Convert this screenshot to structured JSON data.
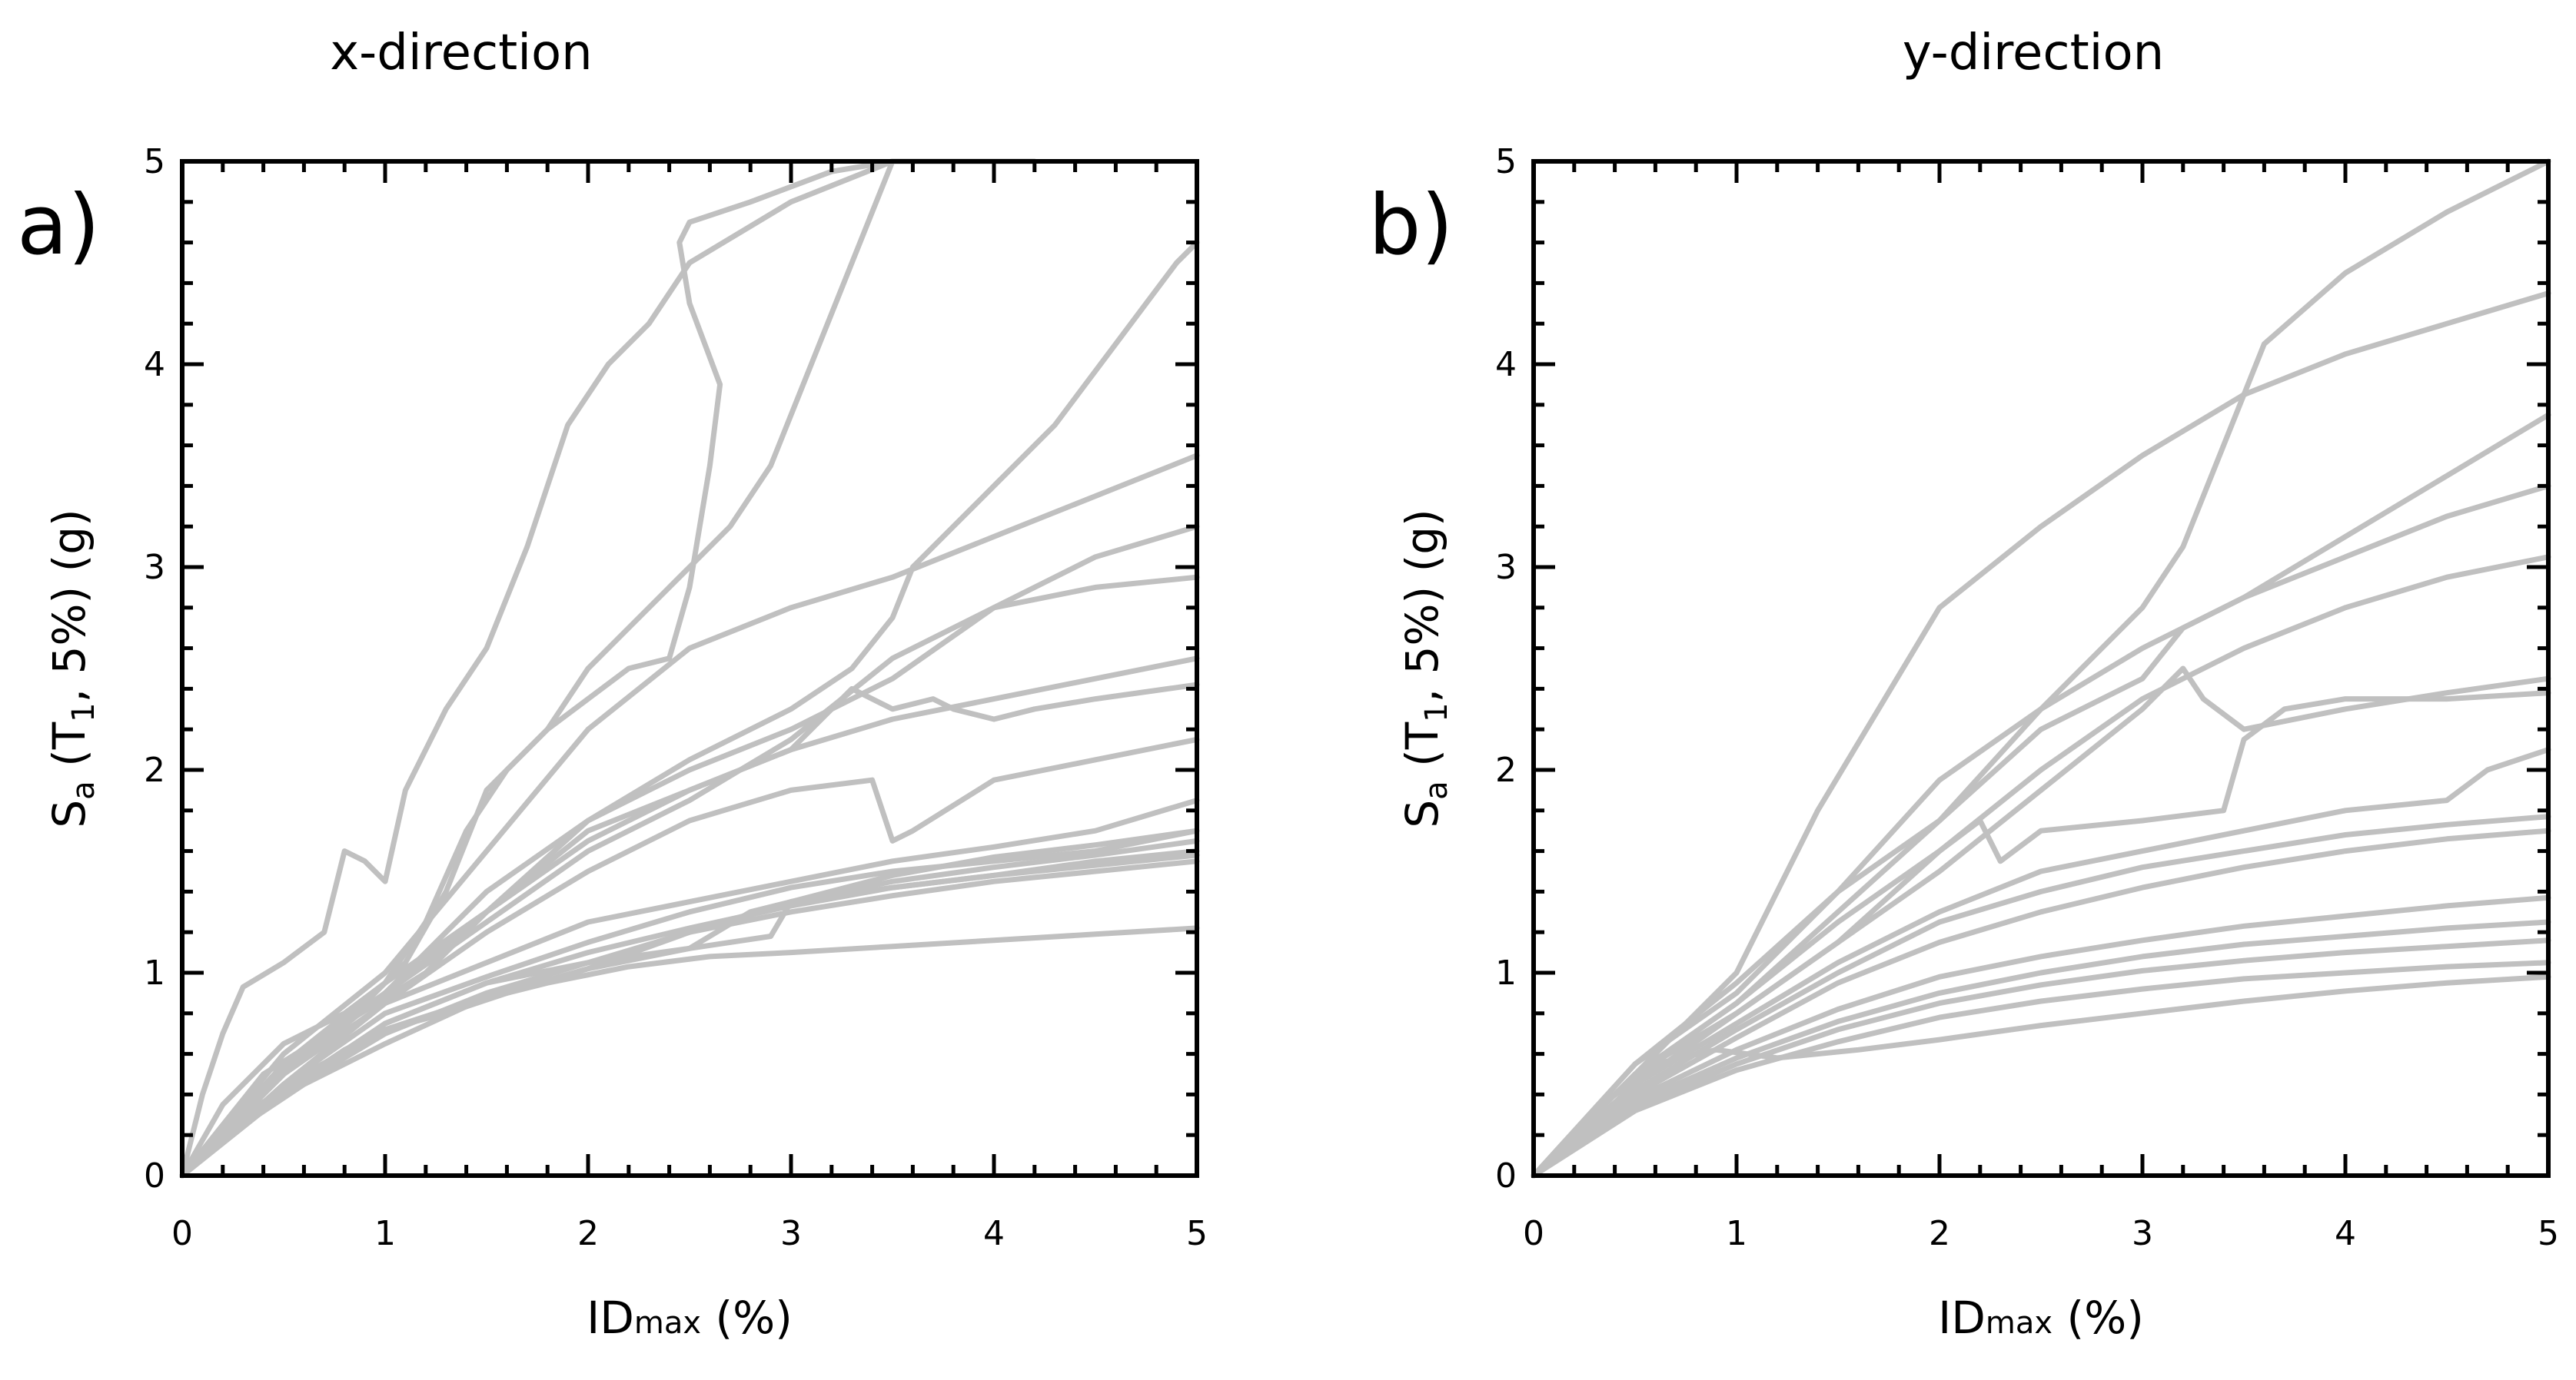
{
  "chart_data": [
    {
      "type": "line",
      "panel_label": "a)",
      "title": "x-direction",
      "xlabel": {
        "main": "ID",
        "sub": "max",
        "unit": " (%)"
      },
      "ylabel": {
        "main": "S",
        "sub": "a",
        "arg_open": " (T",
        "arg_sub": "1",
        "arg_close": ", 5%)  (g)"
      },
      "xlim": [
        0,
        5
      ],
      "ylim": [
        0,
        5
      ],
      "xticks": [
        "0",
        "1",
        "2",
        "3",
        "4",
        "5"
      ],
      "yticks": [
        "0",
        "1",
        "2",
        "3",
        "4",
        "5"
      ],
      "line_color": "#c0c0c0",
      "grid": false,
      "series": [
        {
          "x": [
            0,
            0.1,
            0.2,
            0.3,
            0.5,
            0.7,
            0.8,
            0.9,
            1.0,
            1.1,
            1.3,
            1.5,
            1.7,
            1.9,
            2.1,
            2.3,
            2.5,
            3.0,
            3.5,
            4.2
          ],
          "y": [
            0,
            0.4,
            0.7,
            0.93,
            1.05,
            1.2,
            1.6,
            1.55,
            1.45,
            1.9,
            2.3,
            2.6,
            3.1,
            3.7,
            4.0,
            4.2,
            4.5,
            4.8,
            5.0,
            5.2
          ]
        },
        {
          "x": [
            0,
            0.2,
            0.5,
            0.8,
            1.0,
            1.2,
            1.4,
            1.6,
            1.8,
            2.0,
            2.2,
            2.4,
            2.5,
            2.6,
            2.65,
            2.5,
            2.45,
            2.5,
            2.8,
            3.2,
            3.5
          ],
          "y": [
            0,
            0.35,
            0.65,
            0.8,
            0.95,
            1.25,
            1.7,
            2.0,
            2.2,
            2.35,
            2.5,
            2.55,
            2.9,
            3.5,
            3.9,
            4.3,
            4.6,
            4.7,
            4.8,
            4.95,
            5.1
          ]
        },
        {
          "x": [
            0,
            0.3,
            0.6,
            0.9,
            1.1,
            1.3,
            1.5,
            1.8,
            2.0,
            2.2,
            2.4,
            2.7,
            2.9,
            3.1,
            3.3,
            3.5
          ],
          "y": [
            0,
            0.35,
            0.6,
            0.85,
            1.05,
            1.4,
            1.9,
            2.2,
            2.5,
            2.7,
            2.9,
            3.2,
            3.5,
            4.0,
            4.5,
            5.0
          ]
        },
        {
          "x": [
            0,
            0.4,
            0.8,
            1.2,
            1.5,
            2.0,
            2.5,
            3.0,
            3.3,
            3.5,
            3.6,
            3.7,
            3.8,
            4.0,
            4.3,
            4.6,
            4.9,
            5.0
          ],
          "y": [
            0,
            0.5,
            0.75,
            1.0,
            1.3,
            1.75,
            2.05,
            2.3,
            2.5,
            2.75,
            3.0,
            3.1,
            3.2,
            3.4,
            3.7,
            4.1,
            4.5,
            4.6
          ]
        },
        {
          "x": [
            0,
            0.5,
            1.0,
            1.5,
            2.0,
            2.5,
            3.0,
            3.5,
            4.0,
            4.5,
            5.0
          ],
          "y": [
            0,
            0.55,
            0.9,
            1.4,
            1.75,
            2.0,
            2.2,
            2.45,
            2.8,
            3.05,
            3.2
          ]
        },
        {
          "x": [
            0,
            0.5,
            1.0,
            1.5,
            2.0,
            2.5,
            3.0,
            3.5,
            4.0,
            4.5,
            5.0
          ],
          "y": [
            0,
            0.6,
            1.0,
            1.6,
            2.2,
            2.6,
            2.8,
            2.95,
            3.15,
            3.35,
            3.55
          ]
        },
        {
          "x": [
            0,
            0.5,
            1.0,
            1.5,
            2.0,
            2.5,
            3.0,
            3.5,
            4.0,
            4.5,
            5.0
          ],
          "y": [
            0,
            0.5,
            0.9,
            1.25,
            1.6,
            1.85,
            2.15,
            2.55,
            2.8,
            2.9,
            2.95
          ]
        },
        {
          "x": [
            0,
            0.5,
            1.0,
            1.5,
            2.0,
            2.5,
            3.0,
            3.5,
            4.0,
            4.5,
            5.0
          ],
          "y": [
            0,
            0.55,
            0.95,
            1.3,
            1.7,
            1.9,
            2.1,
            2.25,
            2.35,
            2.45,
            2.55
          ]
        },
        {
          "x": [
            0,
            0.5,
            1.0,
            1.5,
            2.0,
            2.5,
            3.0,
            3.3,
            3.5,
            3.7,
            3.8,
            4.0,
            4.2,
            4.5,
            5.0
          ],
          "y": [
            0,
            0.5,
            0.9,
            1.3,
            1.65,
            1.9,
            2.1,
            2.4,
            2.3,
            2.35,
            2.3,
            2.25,
            2.3,
            2.35,
            2.42
          ]
        },
        {
          "x": [
            0,
            0.5,
            1.0,
            1.5,
            2.0,
            2.5,
            3.0,
            3.4,
            3.5,
            3.6,
            4.0,
            4.5,
            5.0
          ],
          "y": [
            0,
            0.45,
            0.85,
            1.2,
            1.5,
            1.75,
            1.9,
            1.95,
            1.65,
            1.7,
            1.95,
            2.05,
            2.15
          ]
        },
        {
          "x": [
            0,
            0.5,
            1.0,
            1.5,
            2.0,
            2.5,
            3.0,
            3.5,
            4.0,
            4.5,
            5.0
          ],
          "y": [
            0,
            0.5,
            0.85,
            1.05,
            1.25,
            1.35,
            1.45,
            1.55,
            1.62,
            1.7,
            1.85
          ]
        },
        {
          "x": [
            0,
            0.5,
            1.0,
            1.5,
            2.0,
            2.5,
            3.0,
            3.5,
            4.0,
            4.5,
            5.0
          ],
          "y": [
            0,
            0.45,
            0.8,
            0.98,
            1.15,
            1.3,
            1.42,
            1.5,
            1.55,
            1.6,
            1.7
          ]
        },
        {
          "x": [
            0,
            0.5,
            1.0,
            1.5,
            2.0,
            2.5,
            3.0,
            3.5,
            4.0,
            4.5,
            5.0
          ],
          "y": [
            0,
            0.4,
            0.75,
            0.95,
            1.1,
            1.22,
            1.33,
            1.42,
            1.48,
            1.55,
            1.6
          ]
        },
        {
          "x": [
            0,
            0.5,
            1.0,
            1.5,
            2.0,
            2.5,
            3.0,
            3.5,
            4.0,
            4.5,
            5.0
          ],
          "y": [
            0,
            0.4,
            0.7,
            0.9,
            1.05,
            1.2,
            1.3,
            1.38,
            1.45,
            1.5,
            1.55
          ]
        },
        {
          "x": [
            0,
            0.3,
            0.6,
            1.0,
            1.4,
            1.8,
            2.2,
            2.6,
            3.0,
            3.5,
            4.0,
            4.5,
            5.0
          ],
          "y": [
            0,
            0.28,
            0.5,
            0.72,
            0.85,
            0.95,
            1.03,
            1.08,
            1.1,
            1.13,
            1.16,
            1.19,
            1.22
          ]
        },
        {
          "x": [
            0,
            0.3,
            0.6,
            1.0,
            1.5,
            2.0,
            2.5,
            2.8,
            3.0,
            3.5,
            4.0,
            4.5,
            5.0
          ],
          "y": [
            0,
            0.25,
            0.45,
            0.65,
            0.88,
            1.02,
            1.12,
            1.3,
            1.35,
            1.42,
            1.48,
            1.53,
            1.58
          ]
        },
        {
          "x": [
            0,
            0.3,
            0.7,
            1.0,
            1.5,
            2.0,
            2.5,
            2.9,
            3.0,
            3.5,
            4.0,
            4.5,
            5.0
          ],
          "y": [
            0,
            0.3,
            0.55,
            0.75,
            0.95,
            1.05,
            1.12,
            1.18,
            1.35,
            1.45,
            1.52,
            1.58,
            1.65
          ]
        },
        {
          "x": [
            0,
            0.2,
            0.5,
            0.8,
            1.0,
            1.3,
            1.6,
            2.0,
            2.5,
            3.0,
            3.5,
            4.0,
            4.5,
            5.0
          ],
          "y": [
            0,
            0.2,
            0.42,
            0.62,
            0.72,
            0.8,
            0.9,
            1.02,
            1.2,
            1.35,
            1.48,
            1.57,
            1.63,
            1.7
          ]
        }
      ]
    },
    {
      "type": "line",
      "panel_label": "b)",
      "title": "y-direction",
      "xlabel": {
        "main": "ID",
        "sub": "max",
        "unit": " (%)"
      },
      "ylabel": {
        "main": "S",
        "sub": "a",
        "arg_open": " (T",
        "arg_sub": "1",
        "arg_close": ", 5%)  (g)"
      },
      "xlim": [
        0,
        5
      ],
      "ylim": [
        0,
        5
      ],
      "xticks": [
        "0",
        "1",
        "2",
        "3",
        "4",
        "5"
      ],
      "yticks": [
        "0",
        "1",
        "2",
        "3",
        "4",
        "5"
      ],
      "line_color": "#c0c0c0",
      "grid": false,
      "series": [
        {
          "x": [
            0,
            0.5,
            1.0,
            1.4,
            1.7,
            2.0,
            2.5,
            3.0,
            3.5,
            4.0,
            4.5,
            5.0
          ],
          "y": [
            0,
            0.5,
            1.0,
            1.8,
            2.3,
            2.8,
            3.2,
            3.55,
            3.85,
            4.05,
            4.2,
            4.35
          ]
        },
        {
          "x": [
            0,
            0.5,
            1.0,
            1.5,
            2.0,
            2.5,
            3.0,
            3.2,
            3.4,
            3.6,
            4.0,
            4.5,
            5.0
          ],
          "y": [
            0,
            0.55,
            0.95,
            1.4,
            1.75,
            2.3,
            2.8,
            3.1,
            3.6,
            4.1,
            4.45,
            4.75,
            5.0
          ]
        },
        {
          "x": [
            0,
            0.5,
            1.0,
            1.5,
            2.0,
            2.5,
            3.0,
            3.5,
            4.0,
            4.5,
            5.0
          ],
          "y": [
            0,
            0.55,
            0.9,
            1.4,
            1.95,
            2.3,
            2.6,
            2.85,
            3.15,
            3.45,
            3.75
          ]
        },
        {
          "x": [
            0,
            0.5,
            1.0,
            1.5,
            2.0,
            2.5,
            3.0,
            3.2,
            3.5,
            4.0,
            4.5,
            5.0
          ],
          "y": [
            0,
            0.5,
            0.85,
            1.3,
            1.75,
            2.2,
            2.45,
            2.7,
            2.85,
            3.05,
            3.25,
            3.4
          ]
        },
        {
          "x": [
            0,
            0.5,
            1.0,
            1.5,
            2.0,
            2.5,
            3.0,
            3.5,
            4.0,
            4.5,
            5.0
          ],
          "y": [
            0,
            0.5,
            0.85,
            1.25,
            1.6,
            2.0,
            2.35,
            2.6,
            2.8,
            2.95,
            3.05
          ]
        },
        {
          "x": [
            0,
            0.5,
            1.0,
            1.5,
            2.0,
            2.5,
            3.0,
            3.2,
            3.3,
            3.5,
            4.0,
            4.5,
            5.0
          ],
          "y": [
            0,
            0.5,
            0.8,
            1.15,
            1.5,
            1.9,
            2.3,
            2.5,
            2.35,
            2.2,
            2.3,
            2.38,
            2.45
          ]
        },
        {
          "x": [
            0,
            0.5,
            1.0,
            1.5,
            2.0,
            2.2,
            2.3,
            2.5,
            3.0,
            3.4,
            3.5,
            3.7,
            4.0,
            4.5,
            5.0
          ],
          "y": [
            0,
            0.45,
            0.8,
            1.15,
            1.6,
            1.75,
            1.55,
            1.7,
            1.75,
            1.8,
            2.15,
            2.3,
            2.35,
            2.35,
            2.38
          ]
        },
        {
          "x": [
            0,
            0.5,
            1.0,
            1.5,
            2.0,
            2.5,
            3.0,
            3.5,
            4.0,
            4.5,
            4.7,
            5.0
          ],
          "y": [
            0,
            0.45,
            0.75,
            1.05,
            1.3,
            1.5,
            1.6,
            1.7,
            1.8,
            1.85,
            2.0,
            2.1
          ]
        },
        {
          "x": [
            0,
            0.5,
            1.0,
            1.5,
            2.0,
            2.5,
            3.0,
            3.5,
            4.0,
            4.5,
            5.0
          ],
          "y": [
            0,
            0.42,
            0.72,
            1.0,
            1.25,
            1.4,
            1.52,
            1.6,
            1.68,
            1.73,
            1.77
          ]
        },
        {
          "x": [
            0,
            0.5,
            1.0,
            1.5,
            2.0,
            2.5,
            3.0,
            3.5,
            4.0,
            4.5,
            5.0
          ],
          "y": [
            0,
            0.4,
            0.68,
            0.95,
            1.15,
            1.3,
            1.42,
            1.52,
            1.6,
            1.66,
            1.7
          ]
        },
        {
          "x": [
            0,
            0.5,
            1.0,
            1.5,
            2.0,
            2.5,
            3.0,
            3.5,
            4.0,
            4.5,
            5.0
          ],
          "y": [
            0,
            0.38,
            0.62,
            0.82,
            0.98,
            1.08,
            1.16,
            1.23,
            1.28,
            1.33,
            1.37
          ]
        },
        {
          "x": [
            0,
            0.5,
            1.0,
            1.5,
            2.0,
            2.5,
            3.0,
            3.5,
            4.0,
            4.5,
            5.0
          ],
          "y": [
            0,
            0.36,
            0.58,
            0.76,
            0.9,
            1.0,
            1.08,
            1.14,
            1.18,
            1.22,
            1.25
          ]
        },
        {
          "x": [
            0,
            0.5,
            1.0,
            1.5,
            2.0,
            2.5,
            3.0,
            3.5,
            4.0,
            4.5,
            5.0
          ],
          "y": [
            0,
            0.34,
            0.55,
            0.72,
            0.85,
            0.94,
            1.01,
            1.06,
            1.1,
            1.13,
            1.16
          ]
        },
        {
          "x": [
            0,
            0.5,
            1.0,
            1.5,
            2.0,
            2.5,
            3.0,
            3.5,
            4.0,
            4.5,
            5.0
          ],
          "y": [
            0,
            0.32,
            0.52,
            0.66,
            0.78,
            0.86,
            0.92,
            0.97,
            1.0,
            1.03,
            1.05
          ]
        },
        {
          "x": [
            0,
            0.3,
            0.6,
            0.9,
            1.2,
            1.6,
            2.0,
            2.5,
            3.0,
            3.5,
            4.0,
            4.5,
            5.0
          ],
          "y": [
            0,
            0.32,
            0.55,
            0.62,
            0.58,
            0.62,
            0.67,
            0.74,
            0.8,
            0.86,
            0.91,
            0.95,
            0.98
          ]
        }
      ]
    }
  ]
}
